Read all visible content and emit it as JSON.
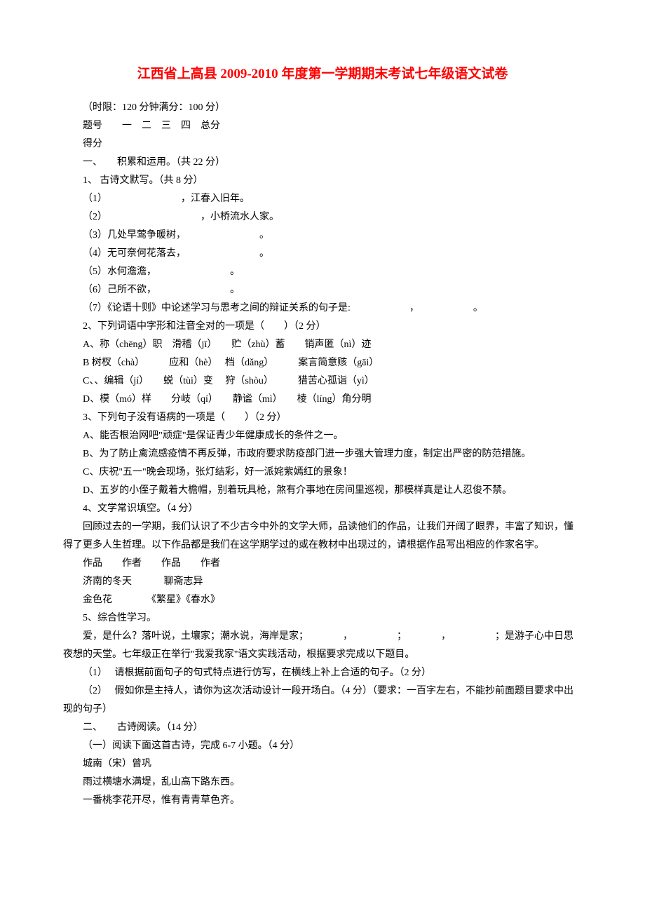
{
  "title": "江西省上高县 2009-2010 年度第一学期期末考试七年级语文试卷",
  "meta": {
    "limit": "（时限：120 分钟满分：100 分）",
    "header_row": "题号　　一　二　三　四　总分",
    "score_row": "得分"
  },
  "section1": {
    "heading": "一、　　积累和运用。（共 22 分）",
    "q1": {
      "stem": "1、 古诗文默写。（共 8 分）",
      "items": [
        "（1）　　　　　　　　，江春入旧年。",
        "（2）　　　　　　　　　　，小桥流水人家。",
        "（3）几处早莺争暖树，　　　　　　　　。",
        "（4）无可奈何花落去，　　　　　　　　。",
        "（5）水何澹澹，　　　　　　　　。",
        "（6）己所不欲，　　　　　　　　。",
        "（7）《论语十则》中论述学习与思考之间的辩证关系的句子是:　　　　　　，　　　　　　。"
      ]
    },
    "q2": {
      "stem": "2、下列词语中字形和注音全对的一项是（　　）（2 分）",
      "opts": [
        "A、称（chēng）职　滑稽（jī）　　贮（zhù）蓄　　销声匿（nì）迹",
        "B 树杈（chà）　　　应和（hè）　 档（dǎng）　　　案言简意赅（gāi）",
        "C、、编辑（jí）　　蜕（tùi）变　 狩（shòu）　　　猎苦心孤诣（yì）",
        "D、模（mó）样　　分岐（qí）　　静谧（mì）　　棱（líng）角分明"
      ]
    },
    "q3": {
      "stem": "3、下列句子没有语病的一项是（　　）（2 分）",
      "opts": [
        "A、能否根治网吧\"顽症\"是保证青少年健康成长的条件之一。",
        "B、为了防止禽流感疫情不再反弹，市政府要求防疫部门进一步强大管理力度，制定出严密的防范措施。",
        "C、庆祝\"五一\"晚会现场，张灯结彩，好一派姹紫嫣红的景象！",
        "D、五岁的小侄子戴着大檐帽，别着玩具枪，煞有介事地在房间里巡视，那模样真是让人忍俊不禁。"
      ]
    },
    "q4": {
      "stem": "4、文学常识填空。（4 分）",
      "desc": "回顾过去的一学期，我们认识了不少古今中外的文学大师，品读他们的作品，让我们开阔了眼界，丰富了知识，懂得了更多人生哲理。以下作品都是我们在这学期学过的或在教材中出现过的，请根据作品写出相应的作家名字。",
      "table_header": "作品　　作者　　作品　　作者",
      "row1": "济南的冬天　　　 聊斋志异",
      "row2": "金色花　　　　《繁星》《春水》"
    },
    "q5": {
      "stem": "5、综合性学习。",
      "desc": "爱，是什么？落叶说，土壤家；潮水说，海岸是家；　　　　，　　　　　；　　　　，　　　　　；是游子心中日思夜想的天堂。七年级正在举行\"我爱我家\"语文实践活动，根据要求完成以下题目。",
      "sub1": "（1）　 请根据前面句子的句式特点进行仿写，在横线上补上合适的句子。（2 分）",
      "sub2": "（2）　 假如你是主持人，请你为这次活动设计一段开场白。（4 分）（要求：一百字左右，不能抄前面题目要求中出现的句子）"
    }
  },
  "section2": {
    "heading": "二、　　古诗阅读。（14 分）",
    "sub_heading": "（一）阅读下面这首古诗，完成 6-7 小题。（4 分）",
    "poem_title": "城南（宋）曾巩",
    "poem_line1": "雨过横塘水满堤，乱山高下路东西。",
    "poem_line2": "一番桃李花开尽，惟有青青草色齐。"
  }
}
